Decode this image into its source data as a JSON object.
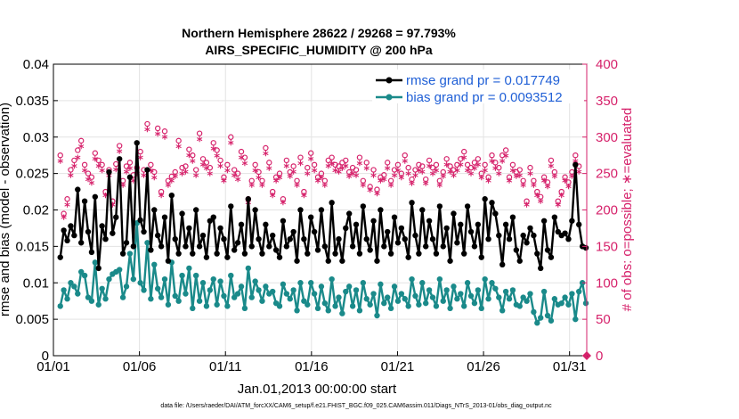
{
  "chart_data": {
    "type": "line",
    "title_line1": "Northern Hemisphere 28622 / 29268 = 97.793%",
    "title_line2": "AIRS_SPECIFIC_HUMIDITY @ 200 hPa",
    "xlabel": "Jan.01,2013 00:00:00 start",
    "ylabel_left": "rmse and bias (model - observation)",
    "ylabel_right": "# of obs: o=possible; ∗=evaluated",
    "footnote": "data file: /Users/raeder/DAI/ATM_forcXX/CAM6_setup/f.e21.FHIST_BGC.f09_025.CAM6assim.011/Diags_NTrS_2013-01/obs_diag_output.nc",
    "xlim": [
      1,
      32
    ],
    "ylim_left": [
      0,
      0.04
    ],
    "ylim_right": [
      0,
      400
    ],
    "x_tick_labels": [
      "01/01",
      "01/06",
      "01/11",
      "01/16",
      "01/21",
      "01/26",
      "01/31"
    ],
    "y_tick_labels_left": [
      "0",
      "0.005",
      "0.01",
      "0.015",
      "0.02",
      "0.025",
      "0.03",
      "0.035",
      "0.04"
    ],
    "y_tick_labels_right": [
      "0",
      "50",
      "100",
      "150",
      "200",
      "250",
      "300",
      "350",
      "400"
    ],
    "legend": {
      "rmse": "rmse grand pr = 0.017749",
      "bias": "bias grand pr = 0.0093512"
    },
    "colors": {
      "rmse": "#000000",
      "bias": "#1a8a8a",
      "obs": "#d6226b"
    },
    "series": [
      {
        "name": "rmse",
        "values": [
          0.0135,
          0.0172,
          0.0158,
          0.0178,
          0.0165,
          0.0228,
          0.0155,
          0.0212,
          0.017,
          0.0142,
          0.0218,
          0.012,
          0.0178,
          0.016,
          0.0252,
          0.0168,
          0.019,
          0.027,
          0.014,
          0.0155,
          0.0245,
          0.015,
          0.0292,
          0.0186,
          0.017,
          0.0255,
          0.0145,
          0.02,
          0.0165,
          0.015,
          0.019,
          0.013,
          0.022,
          0.016,
          0.014,
          0.0195,
          0.015,
          0.0175,
          0.014,
          0.02,
          0.015,
          0.0165,
          0.0135,
          0.0185,
          0.019,
          0.014,
          0.0175,
          0.016,
          0.0135,
          0.0205,
          0.0145,
          0.0155,
          0.018,
          0.014,
          0.0215,
          0.015,
          0.02,
          0.016,
          0.014,
          0.018,
          0.015,
          0.0165,
          0.0145,
          0.0135,
          0.0185,
          0.015,
          0.016,
          0.017,
          0.013,
          0.02,
          0.016,
          0.014,
          0.019,
          0.017,
          0.0145,
          0.02,
          0.015,
          0.013,
          0.021,
          0.014,
          0.016,
          0.013,
          0.0175,
          0.0195,
          0.015,
          0.018,
          0.014,
          0.0205,
          0.016,
          0.0145,
          0.0185,
          0.013,
          0.02,
          0.015,
          0.017,
          0.014,
          0.019,
          0.0155,
          0.0175,
          0.016,
          0.0135,
          0.021,
          0.0165,
          0.014,
          0.02,
          0.015,
          0.0185,
          0.016,
          0.014,
          0.0205,
          0.015,
          0.0175,
          0.013,
          0.0195,
          0.0155,
          0.018,
          0.014,
          0.0205,
          0.017,
          0.015,
          0.018,
          0.0135,
          0.0215,
          0.016,
          0.021,
          0.0195,
          0.0165,
          0.0125,
          0.018,
          0.016,
          0.019,
          0.0145,
          0.013,
          0.0165,
          0.0155,
          0.0175,
          0.0165,
          0.014,
          0.012,
          0.0185,
          0.0145,
          0.0135,
          0.019,
          0.017,
          0.0165,
          0.0168,
          0.016,
          0.0185,
          0.0262,
          0.018,
          0.015,
          0.0148
        ]
      },
      {
        "name": "bias",
        "values": [
          0.0068,
          0.009,
          0.0078,
          0.01,
          0.0095,
          0.0085,
          0.0115,
          0.011,
          0.008,
          0.0075,
          0.0128,
          0.007,
          0.0092,
          0.0078,
          0.0105,
          0.0112,
          0.0115,
          0.0118,
          0.008,
          0.0095,
          0.014,
          0.0105,
          0.0182,
          0.01,
          0.009,
          0.0155,
          0.0078,
          0.0125,
          0.0092,
          0.008,
          0.0105,
          0.007,
          0.0128,
          0.0082,
          0.0075,
          0.011,
          0.0085,
          0.012,
          0.0065,
          0.011,
          0.0075,
          0.01,
          0.0068,
          0.009,
          0.0105,
          0.007,
          0.0102,
          0.0082,
          0.0068,
          0.011,
          0.008,
          0.0085,
          0.0095,
          0.0065,
          0.012,
          0.008,
          0.0102,
          0.009,
          0.0075,
          0.0095,
          0.0085,
          0.0088,
          0.0072,
          0.0068,
          0.0098,
          0.0085,
          0.0078,
          0.009,
          0.0062,
          0.01,
          0.0075,
          0.007,
          0.01,
          0.0085,
          0.0065,
          0.0095,
          0.0072,
          0.0062,
          0.0105,
          0.0068,
          0.008,
          0.0058,
          0.0088,
          0.0095,
          0.0068,
          0.009,
          0.0062,
          0.01,
          0.0078,
          0.007,
          0.0085,
          0.0055,
          0.0098,
          0.0072,
          0.008,
          0.0065,
          0.0095,
          0.0075,
          0.0085,
          0.0078,
          0.0068,
          0.0105,
          0.0082,
          0.007,
          0.01,
          0.0072,
          0.009,
          0.008,
          0.0068,
          0.0105,
          0.0075,
          0.009,
          0.0065,
          0.0095,
          0.0078,
          0.0085,
          0.0068,
          0.01,
          0.0082,
          0.0072,
          0.009,
          0.0065,
          0.0105,
          0.0078,
          0.01,
          0.0092,
          0.008,
          0.0062,
          0.0088,
          0.0078,
          0.009,
          0.007,
          0.0068,
          0.008,
          0.0075,
          0.0085,
          0.006,
          0.0045,
          0.0052,
          0.0088,
          0.0055,
          0.0048,
          0.0078,
          0.007,
          0.0072,
          0.008,
          0.007,
          0.0085,
          0.005,
          0.0088,
          0.01,
          0.0072
        ]
      },
      {
        "name": "obs_possible",
        "values": [
          275,
          195,
          215,
          255,
          268,
          282,
          295,
          262,
          250,
          245,
          278,
          268,
          262,
          225,
          255,
          212,
          263,
          288,
          240,
          260,
          265,
          248,
          258,
          280,
          255,
          318,
          262,
          252,
          312,
          225,
          308,
          240,
          246,
          252,
          295,
          258,
          260,
          283,
          275,
          255,
          305,
          270,
          265,
          258,
          292,
          282,
          268,
          245,
          262,
          300,
          255,
          250,
          280,
          272,
          215,
          240,
          262,
          252,
          240,
          285,
          265,
          225,
          245,
          250,
          215,
          268,
          252,
          260,
          240,
          272,
          225,
          258,
          278,
          262,
          245,
          250,
          240,
          268,
          272,
          262,
          260,
          265,
          268,
          252,
          258,
          255,
          272,
          240,
          265,
          232,
          255,
          228,
          245,
          248,
          265,
          240,
          255,
          262,
          250,
          275,
          258,
          242,
          255,
          262,
          260,
          242,
          268,
          258,
          262,
          240,
          252,
          270,
          260,
          255,
          262,
          270,
          280,
          262,
          258,
          265,
          270,
          250,
          262,
          245,
          275,
          265,
          258,
          275,
          282,
          245,
          262,
          252,
          255,
          240,
          212,
          258,
          240,
          225,
          218,
          245,
          238,
          268,
          252,
          212,
          225,
          245,
          238,
          252,
          275,
          260
        ]
      },
      {
        "name": "obs_evaluated",
        "values": [
          265,
          188,
          205,
          245,
          258,
          270,
          285,
          252,
          240,
          235,
          268,
          258,
          252,
          218,
          245,
          205,
          253,
          278,
          232,
          250,
          255,
          238,
          248,
          270,
          245,
          308,
          252,
          242,
          302,
          218,
          298,
          232,
          238,
          244,
          285,
          248,
          250,
          273,
          265,
          245,
          295,
          260,
          255,
          248,
          282,
          272,
          258,
          238,
          252,
          290,
          245,
          240,
          270,
          262,
          208,
          232,
          252,
          242,
          232,
          275,
          255,
          218,
          238,
          242,
          208,
          258,
          244,
          250,
          232,
          262,
          218,
          248,
          268,
          252,
          238,
          242,
          232,
          258,
          262,
          252,
          250,
          255,
          258,
          244,
          248,
          245,
          262,
          232,
          255,
          225,
          245,
          220,
          238,
          240,
          255,
          232,
          245,
          252,
          242,
          265,
          248,
          234,
          245,
          252,
          250,
          234,
          258,
          248,
          252,
          232,
          244,
          260,
          250,
          245,
          252,
          260,
          270,
          252,
          248,
          255,
          260,
          242,
          252,
          238,
          265,
          255,
          248,
          265,
          272,
          238,
          252,
          244,
          245,
          232,
          205,
          248,
          232,
          218,
          210,
          238,
          230,
          258,
          244,
          205,
          218,
          238,
          230,
          244,
          265,
          250
        ]
      }
    ]
  }
}
